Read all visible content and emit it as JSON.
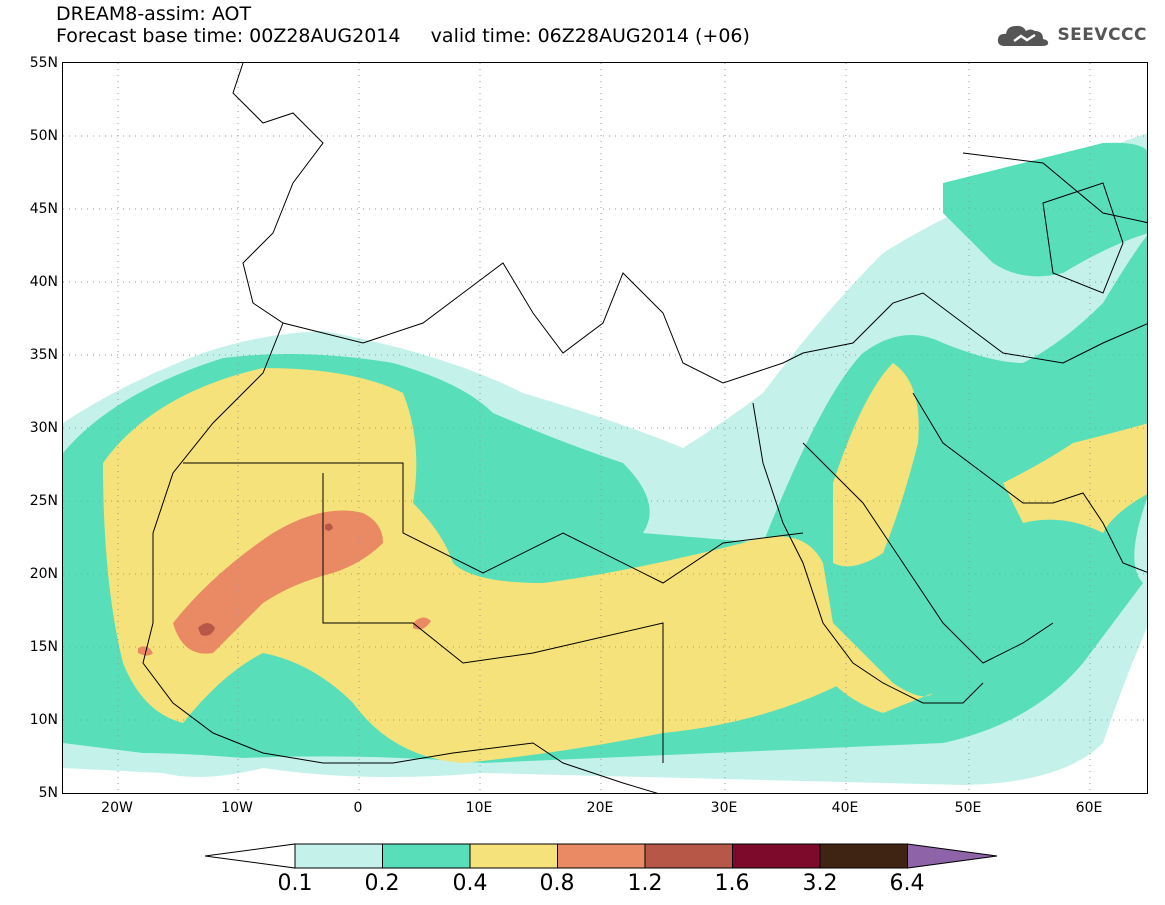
{
  "header": {
    "title_line1": "DREAM8-assim: AOT",
    "title_line2": "Forecast base time: 00Z28AUG2014     valid time: 06Z28AUG2014 (+06)"
  },
  "logo": {
    "text": "SEEVCCC",
    "icon": "cloud-icon"
  },
  "axes": {
    "lat_labels": [
      "55N",
      "50N",
      "45N",
      "40N",
      "35N",
      "30N",
      "25N",
      "20N",
      "15N",
      "10N",
      "5N"
    ],
    "lon_labels": [
      "20W",
      "10W",
      "0",
      "10E",
      "20E",
      "30E",
      "40E",
      "50E",
      "60E"
    ]
  },
  "legend": {
    "levels": [
      "0.1",
      "0.2",
      "0.4",
      "0.8",
      "1.2",
      "1.6",
      "3.2",
      "6.4"
    ],
    "colors": [
      "#c4f2ea",
      "#58dfb9",
      "#f5e27a",
      "#e98a64",
      "#b65747",
      "#7d0a2a",
      "#3f2414",
      "#8f63a7"
    ],
    "under_color": "#ffffff"
  }
}
